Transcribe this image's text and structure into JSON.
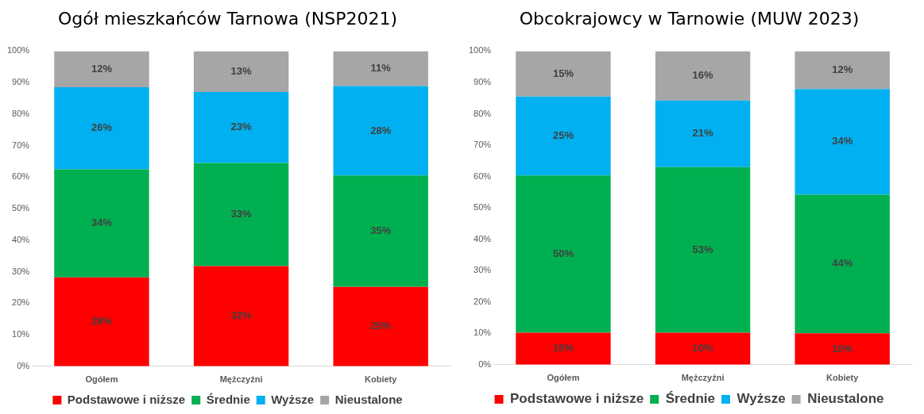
{
  "chart_data": [
    {
      "type": "bar",
      "title": "Ogół mieszkańców Tarnowa (NSP2021)",
      "categories": [
        "Ogółem",
        "Mężczyźni",
        "Kobiety"
      ],
      "stacked": true,
      "legend": "bottom",
      "grid": false,
      "ylim": [
        0,
        100
      ],
      "yticks": [
        {
          "value": 0,
          "label": "0%"
        },
        {
          "value": 10,
          "label": "10%"
        },
        {
          "value": 20,
          "label": "20%"
        },
        {
          "value": 30,
          "label": "30%"
        },
        {
          "value": 40,
          "label": "40%"
        },
        {
          "value": 50,
          "label": "50%"
        },
        {
          "value": 60,
          "label": "60%"
        },
        {
          "value": 70,
          "label": "70%"
        },
        {
          "value": 80,
          "label": "80%"
        },
        {
          "value": 90,
          "label": "90%"
        },
        {
          "value": 100,
          "label": "100%"
        }
      ],
      "series": [
        {
          "name": "Podstawowe i niższe",
          "color": "#ff0000",
          "values": [
            28.2,
            31.8,
            25.2
          ],
          "value_labels": [
            "28%",
            "32%",
            "25%"
          ]
        },
        {
          "name": "Średnie",
          "color": "#00b050",
          "values": [
            34.3,
            32.7,
            35.3
          ],
          "value_labels": [
            "34%",
            "33%",
            "35%"
          ]
        },
        {
          "name": "Wyższe",
          "color": "#00b0f0",
          "values": [
            26.0,
            22.5,
            28.4
          ],
          "value_labels": [
            "26%",
            "23%",
            "28%"
          ]
        },
        {
          "name": "Nieustalone",
          "color": "#a6a6a6",
          "values": [
            11.5,
            13.0,
            11.1
          ],
          "value_labels": [
            "12%",
            "13%",
            "11%"
          ]
        }
      ]
    },
    {
      "type": "bar",
      "title": "Obcokrajowcy w Tarnowie (MUW 2023)",
      "categories": [
        "Ogółem",
        "Mężczyźni",
        "Kobiety"
      ],
      "stacked": true,
      "legend": "bottom",
      "grid": false,
      "ylim": [
        0,
        100
      ],
      "yticks": [
        {
          "value": 0,
          "label": "0%"
        },
        {
          "value": 10,
          "label": "10%"
        },
        {
          "value": 20,
          "label": "20%"
        },
        {
          "value": 30,
          "label": "30%"
        },
        {
          "value": 40,
          "label": "40%"
        },
        {
          "value": 50,
          "label": "50%"
        },
        {
          "value": 60,
          "label": "60%"
        },
        {
          "value": 70,
          "label": "70%"
        },
        {
          "value": 80,
          "label": "80%"
        },
        {
          "value": 90,
          "label": "90%"
        },
        {
          "value": 100,
          "label": "100%"
        }
      ],
      "series": [
        {
          "name": "Podstawowe i niższe",
          "color": "#ff0000",
          "values": [
            10.2,
            10.2,
            10.0
          ],
          "value_labels": [
            "10%",
            "10%",
            "10%"
          ]
        },
        {
          "name": "Średnie",
          "color": "#00b050",
          "values": [
            50.1,
            52.8,
            44.2
          ],
          "value_labels": [
            "50%",
            "53%",
            "44%"
          ]
        },
        {
          "name": "Wyższe",
          "color": "#00b0f0",
          "values": [
            25.2,
            21.2,
            33.7
          ],
          "value_labels": [
            "25%",
            "21%",
            "34%"
          ]
        },
        {
          "name": "Nieustalone",
          "color": "#a6a6a6",
          "values": [
            14.5,
            15.8,
            12.1
          ],
          "value_labels": [
            "15%",
            "16%",
            "12%"
          ]
        }
      ]
    }
  ]
}
